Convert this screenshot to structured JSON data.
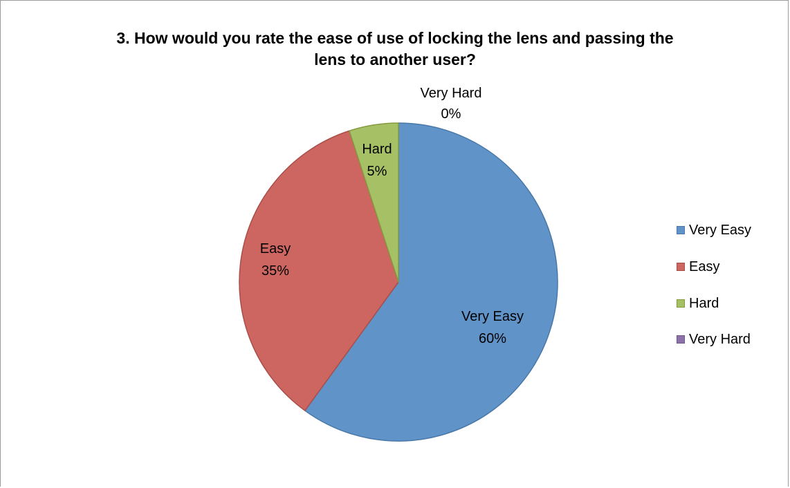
{
  "chart_data": {
    "type": "pie",
    "title_lines": [
      "3. How would you rate the ease of use of locking the lens and passing the",
      "lens to another user?"
    ],
    "categories": [
      "Very Easy",
      "Easy",
      "Hard",
      "Very Hard"
    ],
    "values": [
      60,
      35,
      5,
      0
    ],
    "value_labels": [
      "60%",
      "35%",
      "5%",
      "0%"
    ],
    "colors": [
      "#6094c9",
      "#cd6660",
      "#a6c066",
      "#8c72a8"
    ],
    "edge_colors": [
      "#4a77a8",
      "#a84e49",
      "#84993f",
      "#6e5889"
    ],
    "legend_position": "right",
    "data_labels": true
  }
}
